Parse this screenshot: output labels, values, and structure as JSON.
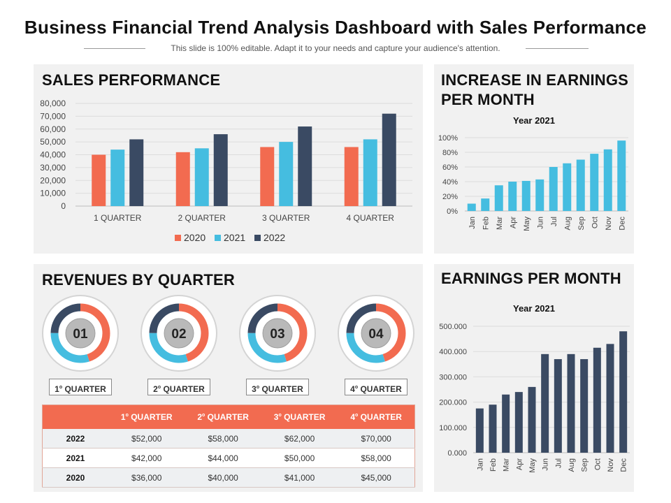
{
  "header": {
    "title": "Business Financial Trend Analysis Dashboard with Sales Performance",
    "subtitle": "This slide is 100% editable. Adapt it to your needs and capture your audience's attention."
  },
  "colors": {
    "c2020": "#f26b50",
    "c2021": "#45bde0",
    "c2022": "#3a4a63",
    "panel": "#f1f1f1"
  },
  "sales_panel": {
    "title": "SALES PERFORMANCE"
  },
  "increase_panel": {
    "title_line1": "INCREASE IN EARNINGS",
    "title_line2": "PER MONTH",
    "chart_title": "Year 2021"
  },
  "revenue_panel": {
    "title": "REVENUES BY QUARTER",
    "donuts": [
      {
        "number": "01",
        "label_num": "1",
        "label_sup": "o",
        "label_text": " QUARTER",
        "share": 0.45
      },
      {
        "number": "02",
        "label_num": "2",
        "label_sup": "o",
        "label_text": " QUARTER",
        "share": 0.45
      },
      {
        "number": "03",
        "label_num": "3",
        "label_sup": "o",
        "label_text": " QUARTER",
        "share": 0.45
      },
      {
        "number": "04",
        "label_num": "4",
        "label_sup": "o",
        "label_text": " QUARTER",
        "share": 0.45
      }
    ],
    "table": {
      "headers": [
        {
          "num": "",
          "sup": "",
          "text": ""
        },
        {
          "num": "1",
          "sup": "o",
          "text": " QUARTER"
        },
        {
          "num": "2",
          "sup": "o",
          "text": " QUARTER"
        },
        {
          "num": "3",
          "sup": "o",
          "text": " QUARTER"
        },
        {
          "num": "4",
          "sup": "o",
          "text": " QUARTER"
        }
      ],
      "rows": [
        {
          "year": "2022",
          "cells": [
            "$52,000",
            "$58,000",
            "$62,000",
            "$70,000"
          ]
        },
        {
          "year": "2021",
          "cells": [
            "$42,000",
            "$44,000",
            "$50,000",
            "$58,000"
          ]
        },
        {
          "year": "2020",
          "cells": [
            "$36,000",
            "$40,000",
            "$41,000",
            "$45,000"
          ]
        }
      ]
    }
  },
  "earnings_panel": {
    "title": "EARNINGS PER MONTH",
    "chart_title": "Year 2021"
  },
  "chart_data": [
    {
      "type": "bar",
      "title": "SALES PERFORMANCE",
      "categories": [
        "1 QUARTER",
        "2 QUARTER",
        "3 QUARTER",
        "4 QUARTER"
      ],
      "series": [
        {
          "name": "2020",
          "values": [
            40000,
            42000,
            46000,
            46000
          ]
        },
        {
          "name": "2021",
          "values": [
            44000,
            45000,
            50000,
            52000
          ]
        },
        {
          "name": "2022",
          "values": [
            52000,
            56000,
            62000,
            72000
          ]
        }
      ],
      "ylim": [
        0,
        80000
      ],
      "yticks": [
        "0",
        "10,000",
        "20,000",
        "30,000",
        "40,000",
        "50,000",
        "60,000",
        "70,000",
        "80,000"
      ],
      "legend": "bottom",
      "grid": true
    },
    {
      "type": "bar",
      "title": "Year 2021",
      "categories": [
        "Jan",
        "Feb",
        "Mar",
        "Apr",
        "May",
        "Jun",
        "Jul",
        "Aug",
        "Sep",
        "Oct",
        "Nov",
        "Dec"
      ],
      "values": [
        0.1,
        0.17,
        0.35,
        0.4,
        0.41,
        0.43,
        0.6,
        0.65,
        0.7,
        0.78,
        0.84,
        0.96
      ],
      "ylim": [
        0,
        1
      ],
      "yticks": [
        "0%",
        "20%",
        "40%",
        "60%",
        "80%",
        "100%"
      ],
      "grid": true
    },
    {
      "type": "bar",
      "title": "Year 2021",
      "categories": [
        "Jan",
        "Feb",
        "Mar",
        "Apr",
        "May",
        "Jun",
        "Jul",
        "Aug",
        "Sep",
        "Oct",
        "Nov",
        "Dec"
      ],
      "values": [
        175000,
        190000,
        230000,
        240000,
        260000,
        390000,
        370000,
        390000,
        370000,
        415000,
        430000,
        480000
      ],
      "ylim": [
        0,
        500000
      ],
      "yticks": [
        "0.000",
        "100.000",
        "200.000",
        "300.000",
        "400.000",
        "500.000"
      ],
      "grid": true
    }
  ]
}
